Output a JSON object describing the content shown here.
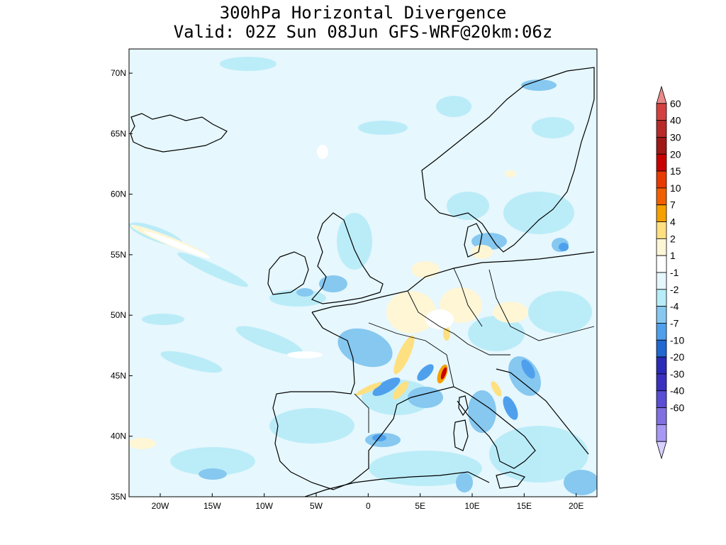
{
  "title": {
    "line1": "300hPa Horizontal Divergence",
    "line2": "Valid: 02Z Sun 08Jun GFS-WRF@20km:06z"
  },
  "axes": {
    "x_ticks": [
      "20W",
      "15W",
      "10W",
      "5W",
      "0",
      "5E",
      "10E",
      "15E",
      "20E"
    ],
    "x_values": [
      -20,
      -15,
      -10,
      -5,
      0,
      5,
      10,
      15,
      20
    ],
    "y_ticks": [
      "70N",
      "65N",
      "60N",
      "55N",
      "50N",
      "45N",
      "40N",
      "35N"
    ],
    "y_values": [
      70,
      65,
      60,
      55,
      50,
      45,
      40,
      35
    ],
    "lon_range": [
      -23,
      22
    ],
    "lat_range": [
      35,
      72
    ]
  },
  "colorbar": {
    "labels": [
      "60",
      "40",
      "30",
      "20",
      "15",
      "10",
      "7",
      "4",
      "2",
      "1",
      "-1",
      "-2",
      "-4",
      "-7",
      "-10",
      "-20",
      "-30",
      "-40",
      "-60"
    ],
    "colors": [
      "#e88a8a",
      "#d44040",
      "#b82a2a",
      "#a01818",
      "#c80000",
      "#e83a00",
      "#f06000",
      "#f5a000",
      "#ffe080",
      "#fff6d6",
      "#ffffff",
      "#e6f7fd",
      "#b8ecf8",
      "#86c8f0",
      "#4fa0ec",
      "#2067d0",
      "#2a2ab8",
      "#3a30c0",
      "#5a4ed4",
      "#8070e0",
      "#a898f4",
      "#d8d0ff"
    ]
  },
  "colors": {
    "background_field": "#e6f7fd",
    "coast": "#000000"
  }
}
